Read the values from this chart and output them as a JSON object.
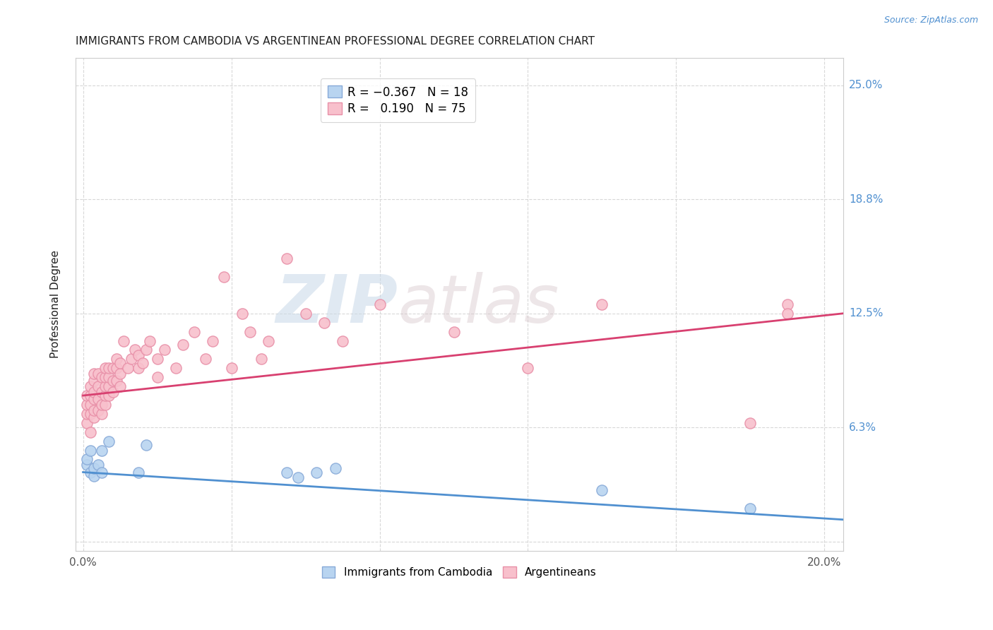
{
  "title": "IMMIGRANTS FROM CAMBODIA VS ARGENTINEAN PROFESSIONAL DEGREE CORRELATION CHART",
  "source": "Source: ZipAtlas.com",
  "xlabel_ticks": [
    0.0,
    0.04,
    0.08,
    0.12,
    0.16,
    0.2
  ],
  "xlabel_labels": [
    "0.0%",
    "",
    "",
    "",
    "",
    "20.0%"
  ],
  "ylabel_ticks": [
    0.0,
    0.0625,
    0.125,
    0.1875,
    0.25
  ],
  "ylabel_labels": [
    "",
    "6.3%",
    "12.5%",
    "18.8%",
    "25.0%"
  ],
  "xlim": [
    -0.002,
    0.205
  ],
  "ylim": [
    -0.005,
    0.265
  ],
  "watermark_zip": "ZIP",
  "watermark_atlas": "atlas",
  "legend_label1": "Immigrants from Cambodia",
  "legend_label2": "Argentineans",
  "cambodia_color": "#b8d4f0",
  "cambodia_edge": "#88aad8",
  "argentina_color": "#f8c0cc",
  "argentina_edge": "#e890a8",
  "cambodia_line_color": "#5090d0",
  "argentina_line_color": "#d84070",
  "background_color": "#ffffff",
  "grid_color": "#d8d8d8",
  "title_color": "#202020",
  "right_label_color": "#5090d0",
  "cambodia_x": [
    0.001,
    0.001,
    0.002,
    0.002,
    0.003,
    0.003,
    0.004,
    0.005,
    0.005,
    0.007,
    0.015,
    0.017,
    0.055,
    0.058,
    0.063,
    0.068,
    0.14,
    0.18
  ],
  "cambodia_y": [
    0.042,
    0.045,
    0.038,
    0.05,
    0.036,
    0.04,
    0.042,
    0.038,
    0.05,
    0.055,
    0.038,
    0.053,
    0.038,
    0.035,
    0.038,
    0.04,
    0.028,
    0.018
  ],
  "argentina_x": [
    0.001,
    0.001,
    0.001,
    0.001,
    0.002,
    0.002,
    0.002,
    0.002,
    0.002,
    0.003,
    0.003,
    0.003,
    0.003,
    0.003,
    0.003,
    0.004,
    0.004,
    0.004,
    0.004,
    0.005,
    0.005,
    0.005,
    0.005,
    0.006,
    0.006,
    0.006,
    0.006,
    0.006,
    0.007,
    0.007,
    0.007,
    0.007,
    0.008,
    0.008,
    0.008,
    0.009,
    0.009,
    0.009,
    0.01,
    0.01,
    0.01,
    0.011,
    0.012,
    0.013,
    0.014,
    0.015,
    0.015,
    0.016,
    0.017,
    0.018,
    0.02,
    0.02,
    0.022,
    0.025,
    0.027,
    0.03,
    0.033,
    0.035,
    0.038,
    0.04,
    0.043,
    0.045,
    0.048,
    0.05,
    0.055,
    0.06,
    0.065,
    0.07,
    0.08,
    0.1,
    0.12,
    0.14,
    0.18,
    0.19,
    0.19
  ],
  "argentina_y": [
    0.065,
    0.07,
    0.075,
    0.08,
    0.06,
    0.07,
    0.075,
    0.08,
    0.085,
    0.068,
    0.072,
    0.078,
    0.082,
    0.088,
    0.092,
    0.072,
    0.078,
    0.085,
    0.092,
    0.07,
    0.075,
    0.082,
    0.09,
    0.075,
    0.08,
    0.085,
    0.09,
    0.095,
    0.08,
    0.085,
    0.09,
    0.095,
    0.082,
    0.088,
    0.095,
    0.088,
    0.095,
    0.1,
    0.085,
    0.092,
    0.098,
    0.11,
    0.095,
    0.1,
    0.105,
    0.095,
    0.102,
    0.098,
    0.105,
    0.11,
    0.09,
    0.1,
    0.105,
    0.095,
    0.108,
    0.115,
    0.1,
    0.11,
    0.145,
    0.095,
    0.125,
    0.115,
    0.1,
    0.11,
    0.155,
    0.125,
    0.12,
    0.11,
    0.13,
    0.115,
    0.095,
    0.13,
    0.065,
    0.13,
    0.125
  ],
  "cam_line_x0": 0.0,
  "cam_line_x1": 0.205,
  "cam_line_y0": 0.038,
  "cam_line_y1": 0.012,
  "arg_line_x0": 0.0,
  "arg_line_x1": 0.205,
  "arg_line_y0": 0.08,
  "arg_line_y1": 0.125
}
